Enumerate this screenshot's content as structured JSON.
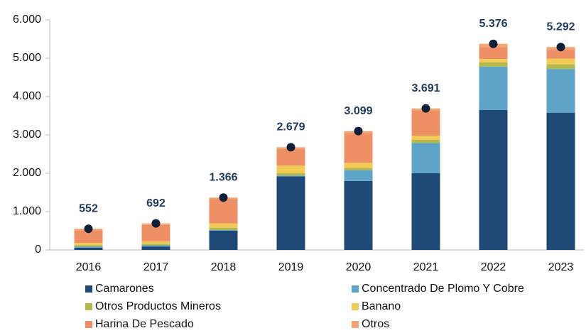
{
  "chart_data": {
    "type": "stacked-bar",
    "categories": [
      "2016",
      "2017",
      "2018",
      "2019",
      "2020",
      "2021",
      "2022",
      "2023"
    ],
    "series": [
      {
        "name": "Camarones",
        "color": "#1f4a78",
        "values": [
          60,
          90,
          500,
          1920,
          1800,
          2000,
          3650,
          3580
        ]
      },
      {
        "name": "Concentrado De Plomo Y Cobre",
        "color": "#5da4c8",
        "values": [
          30,
          30,
          20,
          20,
          280,
          790,
          1130,
          1140
        ]
      },
      {
        "name": "Otros Productos Mineros",
        "color": "#b3b74e",
        "values": [
          30,
          40,
          60,
          60,
          60,
          80,
          110,
          120
        ]
      },
      {
        "name": "Banano",
        "color": "#f2cb55",
        "values": [
          60,
          60,
          110,
          200,
          130,
          110,
          90,
          150
        ]
      },
      {
        "name": "Harina De Pescado",
        "color": "#ee8f66",
        "values": [
          330,
          430,
          640,
          430,
          780,
          660,
          310,
          230
        ]
      },
      {
        "name": "Otros",
        "color": "#f3a56f",
        "values": [
          42,
          42,
          36,
          49,
          49,
          51,
          86,
          72
        ]
      }
    ],
    "totals": {
      "values": [
        552,
        692,
        1366,
        2679,
        3099,
        3691,
        5376,
        5292
      ],
      "value_labels": [
        "552",
        "692",
        "1.366",
        "2.679",
        "3.099",
        "3.691",
        "5.376",
        "5.292"
      ]
    },
    "ylim": [
      0,
      6000
    ],
    "yticks": [
      0,
      {
        "value": 1000,
        "label": "1.000"
      },
      {
        "value": 2000,
        "label": "2.000"
      },
      {
        "value": 3000,
        "label": "3.000"
      },
      {
        "value": 4000,
        "label": "4.000"
      },
      {
        "value": 5000,
        "label": "5.000"
      },
      {
        "value": 6000,
        "label": "6.000"
      }
    ]
  }
}
